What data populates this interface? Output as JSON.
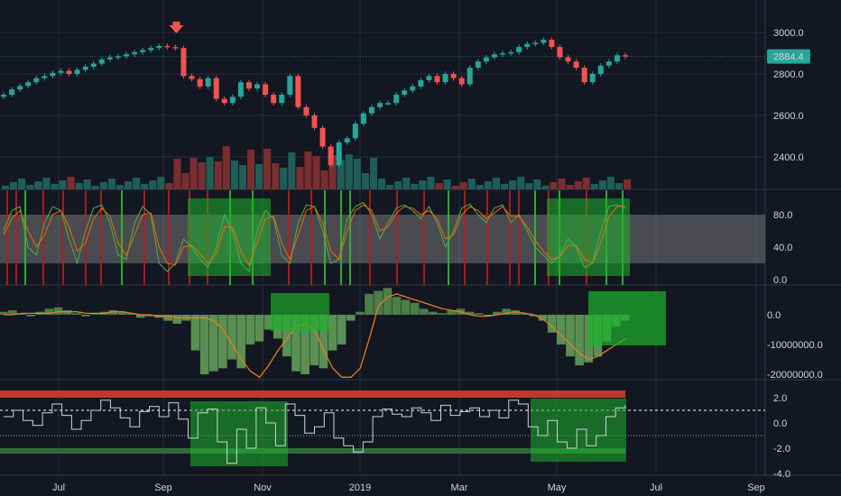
{
  "chart_data": [
    {
      "type": "candlestick",
      "pane": "price",
      "ylim": [
        2300,
        3100
      ],
      "y_ticks": [
        "3000.0",
        "2800.0",
        "2600.0",
        "2400.0"
      ],
      "last_price_label": "2884.4",
      "last_price": 2884.4,
      "marker": "down-arrow",
      "series": [
        {
          "name": "close",
          "values": [
            2700,
            2725,
            2742,
            2760,
            2780,
            2790,
            2805,
            2815,
            2800,
            2820,
            2835,
            2850,
            2870,
            2880,
            2885,
            2895,
            2905,
            2915,
            2925,
            2935,
            2930,
            2925,
            2790,
            2775,
            2740,
            2780,
            2680,
            2660,
            2690,
            2760,
            2730,
            2750,
            2700,
            2660,
            2700,
            2790,
            2640,
            2600,
            2540,
            2450,
            2360,
            2470,
            2490,
            2560,
            2610,
            2640,
            2660,
            2660,
            2700,
            2720,
            2740,
            2770,
            2790,
            2760,
            2800,
            2780,
            2750,
            2830,
            2860,
            2880,
            2895,
            2900,
            2905,
            2930,
            2945,
            2950,
            2965,
            2930,
            2880,
            2860,
            2830,
            2760,
            2800,
            2840,
            2860,
            2890,
            2884
          ]
        }
      ],
      "volume_colors": [
        "#26a69a",
        "#ef5350"
      ]
    },
    {
      "type": "line",
      "pane": "stochastic",
      "ylim": [
        0,
        100
      ],
      "y_ticks": [
        "80.0",
        "40.0",
        "0.0"
      ],
      "band": [
        20,
        80
      ],
      "series": [
        {
          "name": "%K",
          "color": "#4caf50",
          "values": [
            60,
            85,
            90,
            40,
            30,
            70,
            90,
            85,
            50,
            20,
            60,
            88,
            92,
            70,
            30,
            25,
            70,
            90,
            80,
            20,
            10,
            20,
            50,
            40,
            25,
            15,
            40,
            80,
            60,
            20,
            10,
            60,
            85,
            75,
            30,
            20,
            70,
            92,
            90,
            60,
            20,
            25,
            75,
            90,
            95,
            80,
            50,
            70,
            88,
            92,
            85,
            75,
            90,
            70,
            40,
            60,
            88,
            93,
            80,
            70,
            88,
            92,
            70,
            80,
            60,
            40,
            30,
            20,
            30,
            50,
            40,
            15,
            20,
            60,
            90,
            92,
            88
          ]
        },
        {
          "name": "%D",
          "color": "#ef6c00",
          "values": [
            55,
            75,
            85,
            60,
            40,
            55,
            80,
            85,
            65,
            35,
            45,
            75,
            88,
            78,
            45,
            30,
            55,
            80,
            82,
            40,
            20,
            18,
            40,
            42,
            32,
            20,
            32,
            65,
            65,
            35,
            18,
            45,
            75,
            78,
            45,
            25,
            55,
            85,
            90,
            70,
            35,
            25,
            60,
            85,
            92,
            85,
            60,
            65,
            82,
            90,
            88,
            80,
            85,
            75,
            50,
            55,
            80,
            90,
            85,
            75,
            82,
            90,
            78,
            78,
            65,
            48,
            35,
            25,
            28,
            42,
            42,
            25,
            20,
            45,
            78,
            90,
            90
          ]
        }
      ]
    },
    {
      "type": "histogram",
      "pane": "oscillator",
      "ylim": [
        -22000000,
        7000000
      ],
      "y_ticks": [
        "0.0",
        "-10000000.0",
        "-20000000.0"
      ],
      "series": [
        {
          "name": "histogram",
          "color": "#4caf50",
          "values": [
            1000000,
            1500000,
            500000,
            -500000,
            1000000,
            2000000,
            2500000,
            1500000,
            500000,
            -500000,
            500000,
            1000000,
            1500000,
            1000000,
            500000,
            -1000000,
            -500000,
            -1000000,
            -2000000,
            -3000000,
            -2000000,
            -12000000,
            -20000000,
            -19000000,
            -18000000,
            -15000000,
            -18000000,
            -10000000,
            -9000000,
            -5000000,
            -8000000,
            -14000000,
            -19000000,
            -20000000,
            -17000000,
            -18000000,
            -12000000,
            -10000000,
            -2000000,
            1000000,
            7000000,
            8000000,
            9000000,
            6000000,
            5000000,
            4000000,
            2000000,
            1000000,
            500000,
            1500000,
            2000000,
            1000000,
            500000,
            -500000,
            1000000,
            2000000,
            1500000,
            500000,
            -500000,
            -2000000,
            -6000000,
            -10000000,
            -14000000,
            -17000000,
            -16000000,
            -14000000,
            -9000000,
            -4000000,
            -2000000
          ]
        },
        {
          "name": "signal",
          "color": "#e67e22",
          "values": [
            0,
            0,
            500000,
            500000,
            500000,
            500000,
            1000000,
            1000000,
            1000000,
            500000,
            500000,
            500000,
            1000000,
            1000000,
            500000,
            0,
            0,
            -500000,
            -500000,
            -1000000,
            -1000000,
            -1000000,
            -1000000,
            -2000000,
            -5000000,
            -10000000,
            -15000000,
            -19000000,
            -21000000,
            -17000000,
            -12000000,
            -8000000,
            -4000000,
            -3000000,
            -5000000,
            -12000000,
            -18000000,
            -21000000,
            -21000000,
            -18000000,
            -8000000,
            3000000,
            6000000,
            7000000,
            6000000,
            5000000,
            4000000,
            3000000,
            2000000,
            1500000,
            1000000,
            0,
            -500000,
            -500000,
            0,
            500000,
            1000000,
            500000,
            0,
            -1500000,
            -4000000,
            -7000000,
            -10000000,
            -13000000,
            -15000000,
            -14000000,
            -12000000,
            -10000000,
            -8000000
          ]
        }
      ]
    },
    {
      "type": "line",
      "pane": "zscore",
      "ylim": [
        -4,
        3
      ],
      "y_ticks": [
        "2.0",
        "0.0",
        "-2.0",
        "-4.0"
      ],
      "threshold": 1.0,
      "series": [
        {
          "name": "zscore",
          "color": "#d1d4dc",
          "values": [
            0.5,
            1.0,
            0.2,
            -0.2,
            0.8,
            1.5,
            0.6,
            -0.5,
            0.2,
            1.0,
            1.8,
            1.2,
            0.4,
            -0.3,
            0.9,
            1.3,
            0.5,
            1.6,
            0.3,
            -1.2,
            0.8,
            1.1,
            -1.5,
            -3.2,
            -0.5,
            -2.0,
            1.2,
            0.0,
            -1.8,
            1.5,
            0.6,
            -0.8,
            -0.3,
            0.8,
            -1.2,
            -1.8,
            -2.3,
            -1.5,
            0.5,
            1.1,
            0.7,
            0.5,
            1.2,
            0.8,
            0.2,
            1.4,
            0.6,
            0.9,
            1.2,
            0.5,
            1.0,
            0.4,
            1.8,
            1.5,
            -0.3,
            -1.0,
            0.2,
            -1.5,
            -2.0,
            -0.5,
            -1.8,
            -1.0,
            0.5,
            1.2,
            1.4
          ]
        }
      ]
    }
  ],
  "x_axis": {
    "labels": [
      "Jul",
      "Sep",
      "Nov",
      "2019",
      "Mar",
      "May",
      "Jul",
      "Sep"
    ]
  },
  "colors": {
    "background": "#131722",
    "up": "#26a69a",
    "down": "#ef5350",
    "highlight": "#1db32b",
    "grid": "#2a2e39",
    "band": "#9e9e9e"
  }
}
